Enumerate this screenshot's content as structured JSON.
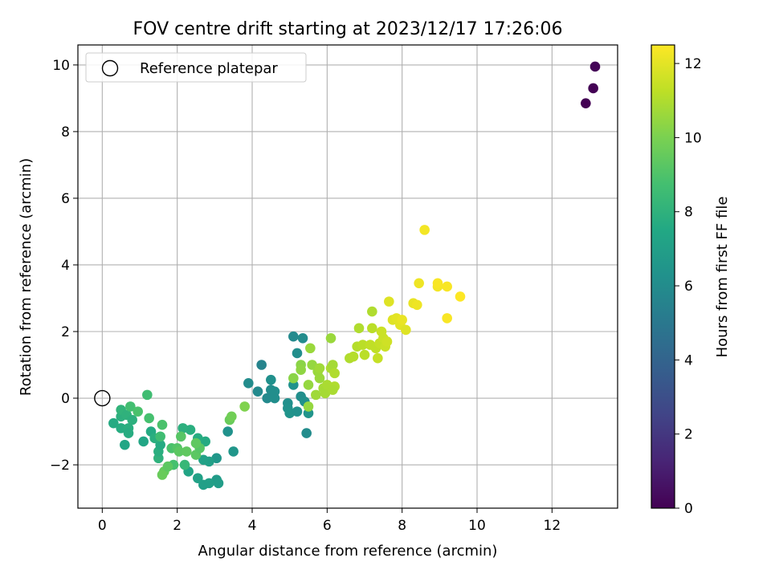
{
  "chart_data": {
    "type": "scatter",
    "title": "FOV centre drift starting at 2023/12/17 17:26:06",
    "xlabel": "Angular distance from reference (arcmin)",
    "ylabel": "Rotation from reference (arcmin)",
    "xlim": [
      -0.65,
      13.75
    ],
    "ylim": [
      -3.3,
      10.6
    ],
    "xticks": [
      0,
      2,
      4,
      6,
      8,
      10,
      12
    ],
    "yticks": [
      -2,
      0,
      2,
      4,
      6,
      8,
      10
    ],
    "grid": true,
    "legend": {
      "placement": "top-left",
      "entries": [
        "Reference platepar"
      ]
    },
    "reference_point": {
      "x": 0,
      "y": 0
    },
    "colorbar": {
      "label": "Hours from first FF file",
      "range": [
        0,
        12.5
      ],
      "ticks": [
        0,
        2,
        4,
        6,
        8,
        10,
        12
      ],
      "colormap": "viridis"
    },
    "points": [
      {
        "x": 12.9,
        "y": 8.85,
        "h": 0.0
      },
      {
        "x": 13.1,
        "y": 9.3,
        "h": 0.05
      },
      {
        "x": 13.15,
        "y": 9.95,
        "h": 0.1
      },
      {
        "x": 4.25,
        "y": 1.0,
        "h": 5.6
      },
      {
        "x": 3.9,
        "y": 0.45,
        "h": 6.0
      },
      {
        "x": 4.15,
        "y": 0.2,
        "h": 5.9
      },
      {
        "x": 4.4,
        "y": 0.0,
        "h": 5.9
      },
      {
        "x": 4.5,
        "y": 0.25,
        "h": 6.0
      },
      {
        "x": 4.6,
        "y": 0.2,
        "h": 6.1
      },
      {
        "x": 4.6,
        "y": 0.0,
        "h": 6.1
      },
      {
        "x": 4.5,
        "y": 0.55,
        "h": 6.2
      },
      {
        "x": 5.1,
        "y": 1.85,
        "h": 5.9
      },
      {
        "x": 5.35,
        "y": 1.8,
        "h": 6.0
      },
      {
        "x": 5.2,
        "y": 1.35,
        "h": 6.1
      },
      {
        "x": 5.1,
        "y": 0.4,
        "h": 6.3
      },
      {
        "x": 4.95,
        "y": -0.15,
        "h": 6.2
      },
      {
        "x": 4.95,
        "y": -0.3,
        "h": 6.3
      },
      {
        "x": 5.0,
        "y": -0.45,
        "h": 6.4
      },
      {
        "x": 5.2,
        "y": -0.4,
        "h": 6.3
      },
      {
        "x": 5.3,
        "y": 0.05,
        "h": 6.1
      },
      {
        "x": 5.4,
        "y": -0.1,
        "h": 6.2
      },
      {
        "x": 5.5,
        "y": -0.45,
        "h": 6.4
      },
      {
        "x": 5.45,
        "y": -1.05,
        "h": 6.0
      },
      {
        "x": 3.35,
        "y": -1.0,
        "h": 6.3
      },
      {
        "x": 3.5,
        "y": -1.6,
        "h": 6.5
      },
      {
        "x": 3.05,
        "y": -1.8,
        "h": 6.6
      },
      {
        "x": 3.05,
        "y": -2.45,
        "h": 6.8
      },
      {
        "x": 3.1,
        "y": -2.55,
        "h": 6.9
      },
      {
        "x": 2.7,
        "y": -2.6,
        "h": 7.0
      },
      {
        "x": 2.85,
        "y": -2.55,
        "h": 7.0
      },
      {
        "x": 2.55,
        "y": -2.4,
        "h": 7.1
      },
      {
        "x": 2.3,
        "y": -2.2,
        "h": 7.3
      },
      {
        "x": 2.85,
        "y": -1.9,
        "h": 7.0
      },
      {
        "x": 2.7,
        "y": -1.85,
        "h": 7.1
      },
      {
        "x": 2.75,
        "y": -1.3,
        "h": 7.6
      },
      {
        "x": 2.55,
        "y": -1.2,
        "h": 7.7
      },
      {
        "x": 2.35,
        "y": -0.95,
        "h": 7.8
      },
      {
        "x": 2.15,
        "y": -0.9,
        "h": 7.9
      },
      {
        "x": 2.2,
        "y": -2.0,
        "h": 8.3
      },
      {
        "x": 1.9,
        "y": -2.0,
        "h": 8.8
      },
      {
        "x": 1.85,
        "y": -1.5,
        "h": 8.9
      },
      {
        "x": 1.5,
        "y": -1.8,
        "h": 8.0
      },
      {
        "x": 1.5,
        "y": -1.6,
        "h": 7.8
      },
      {
        "x": 1.55,
        "y": -1.4,
        "h": 7.6
      },
      {
        "x": 1.1,
        "y": -1.3,
        "h": 7.4
      },
      {
        "x": 1.3,
        "y": -1.0,
        "h": 7.6
      },
      {
        "x": 1.4,
        "y": -1.2,
        "h": 7.8
      },
      {
        "x": 1.2,
        "y": 0.1,
        "h": 8.6
      },
      {
        "x": 0.6,
        "y": -1.4,
        "h": 7.4
      },
      {
        "x": 0.3,
        "y": -0.75,
        "h": 7.6
      },
      {
        "x": 0.5,
        "y": -0.9,
        "h": 7.7
      },
      {
        "x": 0.5,
        "y": -0.55,
        "h": 7.9
      },
      {
        "x": 0.5,
        "y": -0.35,
        "h": 8.1
      },
      {
        "x": 0.65,
        "y": -0.5,
        "h": 8.0
      },
      {
        "x": 0.7,
        "y": -0.9,
        "h": 7.8
      },
      {
        "x": 0.7,
        "y": -1.05,
        "h": 7.7
      },
      {
        "x": 0.8,
        "y": -0.65,
        "h": 7.9
      },
      {
        "x": 0.75,
        "y": -0.25,
        "h": 8.7
      },
      {
        "x": 0.95,
        "y": -0.4,
        "h": 8.9
      },
      {
        "x": 1.6,
        "y": -0.8,
        "h": 8.9
      },
      {
        "x": 1.55,
        "y": -1.15,
        "h": 8.6
      },
      {
        "x": 1.25,
        "y": -0.6,
        "h": 8.8
      },
      {
        "x": 2.0,
        "y": -1.5,
        "h": 9.1
      },
      {
        "x": 2.05,
        "y": -1.6,
        "h": 9.3
      },
      {
        "x": 2.25,
        "y": -1.6,
        "h": 9.4
      },
      {
        "x": 2.1,
        "y": -1.15,
        "h": 9.2
      },
      {
        "x": 2.5,
        "y": -1.7,
        "h": 9.3
      },
      {
        "x": 2.6,
        "y": -1.5,
        "h": 9.2
      },
      {
        "x": 2.5,
        "y": -1.35,
        "h": 9.4
      },
      {
        "x": 1.65,
        "y": -2.2,
        "h": 9.5
      },
      {
        "x": 1.6,
        "y": -2.3,
        "h": 9.6
      },
      {
        "x": 1.75,
        "y": -2.05,
        "h": 9.3
      },
      {
        "x": 3.4,
        "y": -0.65,
        "h": 9.6
      },
      {
        "x": 3.45,
        "y": -0.55,
        "h": 9.8
      },
      {
        "x": 3.8,
        "y": -0.25,
        "h": 10.1
      },
      {
        "x": 5.1,
        "y": 0.6,
        "h": 10.3
      },
      {
        "x": 5.3,
        "y": 1.0,
        "h": 10.3
      },
      {
        "x": 5.3,
        "y": 0.85,
        "h": 10.4
      },
      {
        "x": 5.5,
        "y": 0.4,
        "h": 10.5
      },
      {
        "x": 5.55,
        "y": 1.5,
        "h": 10.6
      },
      {
        "x": 5.6,
        "y": 1.0,
        "h": 10.5
      },
      {
        "x": 5.75,
        "y": 0.8,
        "h": 10.6
      },
      {
        "x": 5.8,
        "y": 0.6,
        "h": 10.6
      },
      {
        "x": 5.8,
        "y": 0.9,
        "h": 10.7
      },
      {
        "x": 5.7,
        "y": 0.1,
        "h": 10.7
      },
      {
        "x": 5.9,
        "y": 0.3,
        "h": 10.8
      },
      {
        "x": 5.95,
        "y": 0.15,
        "h": 10.8
      },
      {
        "x": 6.0,
        "y": 0.4,
        "h": 10.9
      },
      {
        "x": 6.1,
        "y": 0.9,
        "h": 10.9
      },
      {
        "x": 6.15,
        "y": 1.0,
        "h": 10.8
      },
      {
        "x": 6.2,
        "y": 0.75,
        "h": 11.0
      },
      {
        "x": 6.2,
        "y": 0.35,
        "h": 11.0
      },
      {
        "x": 6.15,
        "y": 0.25,
        "h": 10.9
      },
      {
        "x": 6.1,
        "y": 1.8,
        "h": 10.6
      },
      {
        "x": 5.5,
        "y": -0.25,
        "h": 10.5
      },
      {
        "x": 6.6,
        "y": 1.2,
        "h": 11.0
      },
      {
        "x": 6.7,
        "y": 1.25,
        "h": 11.1
      },
      {
        "x": 6.8,
        "y": 1.55,
        "h": 11.1
      },
      {
        "x": 6.85,
        "y": 2.1,
        "h": 11.0
      },
      {
        "x": 6.95,
        "y": 1.6,
        "h": 11.2
      },
      {
        "x": 7.0,
        "y": 1.3,
        "h": 11.2
      },
      {
        "x": 7.15,
        "y": 1.6,
        "h": 11.3
      },
      {
        "x": 7.2,
        "y": 2.6,
        "h": 11.0
      },
      {
        "x": 7.2,
        "y": 2.1,
        "h": 11.2
      },
      {
        "x": 7.3,
        "y": 1.5,
        "h": 11.3
      },
      {
        "x": 7.35,
        "y": 1.2,
        "h": 11.4
      },
      {
        "x": 7.4,
        "y": 1.65,
        "h": 11.4
      },
      {
        "x": 7.45,
        "y": 2.0,
        "h": 11.5
      },
      {
        "x": 7.5,
        "y": 1.8,
        "h": 11.5
      },
      {
        "x": 7.55,
        "y": 1.55,
        "h": 11.5
      },
      {
        "x": 7.6,
        "y": 1.7,
        "h": 11.6
      },
      {
        "x": 7.65,
        "y": 2.9,
        "h": 11.9
      },
      {
        "x": 7.75,
        "y": 2.35,
        "h": 11.9
      },
      {
        "x": 7.85,
        "y": 2.4,
        "h": 12.0
      },
      {
        "x": 7.95,
        "y": 2.2,
        "h": 12.0
      },
      {
        "x": 8.0,
        "y": 2.35,
        "h": 12.1
      },
      {
        "x": 8.1,
        "y": 2.05,
        "h": 11.9
      },
      {
        "x": 8.3,
        "y": 2.85,
        "h": 12.1
      },
      {
        "x": 8.4,
        "y": 2.8,
        "h": 12.2
      },
      {
        "x": 8.45,
        "y": 3.45,
        "h": 12.2
      },
      {
        "x": 8.6,
        "y": 5.05,
        "h": 12.3
      },
      {
        "x": 8.95,
        "y": 3.35,
        "h": 12.3
      },
      {
        "x": 8.95,
        "y": 3.45,
        "h": 12.4
      },
      {
        "x": 9.2,
        "y": 3.35,
        "h": 12.4
      },
      {
        "x": 9.2,
        "y": 2.4,
        "h": 12.4
      },
      {
        "x": 9.55,
        "y": 3.05,
        "h": 12.5
      }
    ]
  }
}
